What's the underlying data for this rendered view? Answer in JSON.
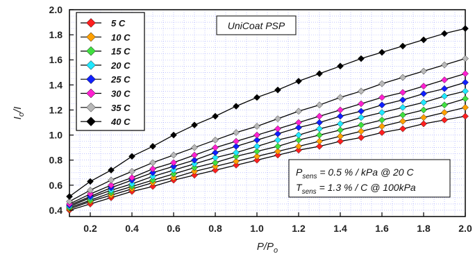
{
  "chart_data": {
    "type": "line",
    "title": "UniCoat PSP",
    "xlabel_main": "P/P",
    "xlabel_sub": "o",
    "ylabel_main": "I",
    "ylabel_sub": "o",
    "ylabel_tail": "/I",
    "xlim": [
      0.1,
      2.0
    ],
    "ylim": [
      0.35,
      2.0
    ],
    "x_ticks": [
      0.2,
      0.4,
      0.6,
      0.8,
      1.0,
      1.2,
      1.4,
      1.6,
      1.8,
      2.0
    ],
    "x_tick_labels": [
      "0.2",
      "0.4",
      "0.6",
      "0.8",
      "1.0",
      "1.2",
      "1.4",
      "1.6",
      "1.8",
      "2.0"
    ],
    "y_ticks": [
      0.4,
      0.6,
      0.8,
      1.0,
      1.2,
      1.4,
      1.6,
      1.8,
      2.0
    ],
    "y_tick_labels": [
      "0.4",
      "0.6",
      "0.8",
      "1.0",
      "1.2",
      "1.4",
      "1.6",
      "1.8",
      "2.0"
    ],
    "grid": true,
    "legend_position": "top-left",
    "x": [
      0.1,
      0.2,
      0.3,
      0.4,
      0.5,
      0.6,
      0.7,
      0.8,
      0.9,
      1.0,
      1.1,
      1.2,
      1.3,
      1.4,
      1.5,
      1.6,
      1.7,
      1.8,
      1.9,
      2.0
    ],
    "series": [
      {
        "name": "5 C",
        "color": "#ff2020",
        "values": [
          0.4,
          0.45,
          0.5,
          0.55,
          0.59,
          0.64,
          0.68,
          0.72,
          0.76,
          0.8,
          0.84,
          0.88,
          0.91,
          0.95,
          0.98,
          1.02,
          1.05,
          1.09,
          1.12,
          1.15
        ]
      },
      {
        "name": "10 C",
        "color": "#ffa000",
        "values": [
          0.41,
          0.47,
          0.52,
          0.57,
          0.62,
          0.66,
          0.71,
          0.75,
          0.79,
          0.83,
          0.87,
          0.91,
          0.95,
          0.99,
          1.03,
          1.07,
          1.11,
          1.14,
          1.18,
          1.22
        ]
      },
      {
        "name": "15 C",
        "color": "#40e040",
        "values": [
          0.42,
          0.48,
          0.54,
          0.59,
          0.64,
          0.69,
          0.74,
          0.78,
          0.83,
          0.87,
          0.91,
          0.96,
          1.0,
          1.04,
          1.08,
          1.12,
          1.16,
          1.2,
          1.24,
          1.29
        ]
      },
      {
        "name": "20 C",
        "color": "#20e8ff",
        "values": [
          0.43,
          0.5,
          0.56,
          0.61,
          0.67,
          0.72,
          0.77,
          0.82,
          0.86,
          0.91,
          0.96,
          1.0,
          1.05,
          1.09,
          1.14,
          1.18,
          1.22,
          1.26,
          1.31,
          1.35
        ]
      },
      {
        "name": "25 C",
        "color": "#1020ff",
        "values": [
          0.44,
          0.51,
          0.58,
          0.64,
          0.7,
          0.75,
          0.8,
          0.86,
          0.91,
          0.96,
          1.01,
          1.06,
          1.1,
          1.15,
          1.19,
          1.24,
          1.28,
          1.33,
          1.37,
          1.42
        ]
      },
      {
        "name": "30 C",
        "color": "#ff20d0",
        "values": [
          0.45,
          0.53,
          0.6,
          0.66,
          0.73,
          0.78,
          0.84,
          0.9,
          0.95,
          1.0,
          1.05,
          1.1,
          1.15,
          1.2,
          1.25,
          1.3,
          1.34,
          1.39,
          1.44,
          1.49
        ]
      },
      {
        "name": "35 C",
        "color": "#b8b8b8",
        "values": [
          0.47,
          0.56,
          0.64,
          0.71,
          0.78,
          0.84,
          0.9,
          0.96,
          1.02,
          1.07,
          1.13,
          1.19,
          1.24,
          1.3,
          1.35,
          1.41,
          1.46,
          1.51,
          1.56,
          1.61
        ]
      },
      {
        "name": "40 C",
        "color": "#000000",
        "values": [
          0.51,
          0.63,
          0.72,
          0.83,
          0.91,
          1.0,
          1.08,
          1.15,
          1.23,
          1.3,
          1.36,
          1.43,
          1.49,
          1.55,
          1.61,
          1.66,
          1.71,
          1.76,
          1.81,
          1.85
        ]
      }
    ],
    "annotation": {
      "line1_main": "P",
      "line1_sub": "sens",
      "line1_rest": " = 0.5 % / kPa @ 20 C",
      "line2_main": "T",
      "line2_sub": "sens",
      "line2_rest": " = 1.3 % / C @ 100kPa"
    }
  }
}
